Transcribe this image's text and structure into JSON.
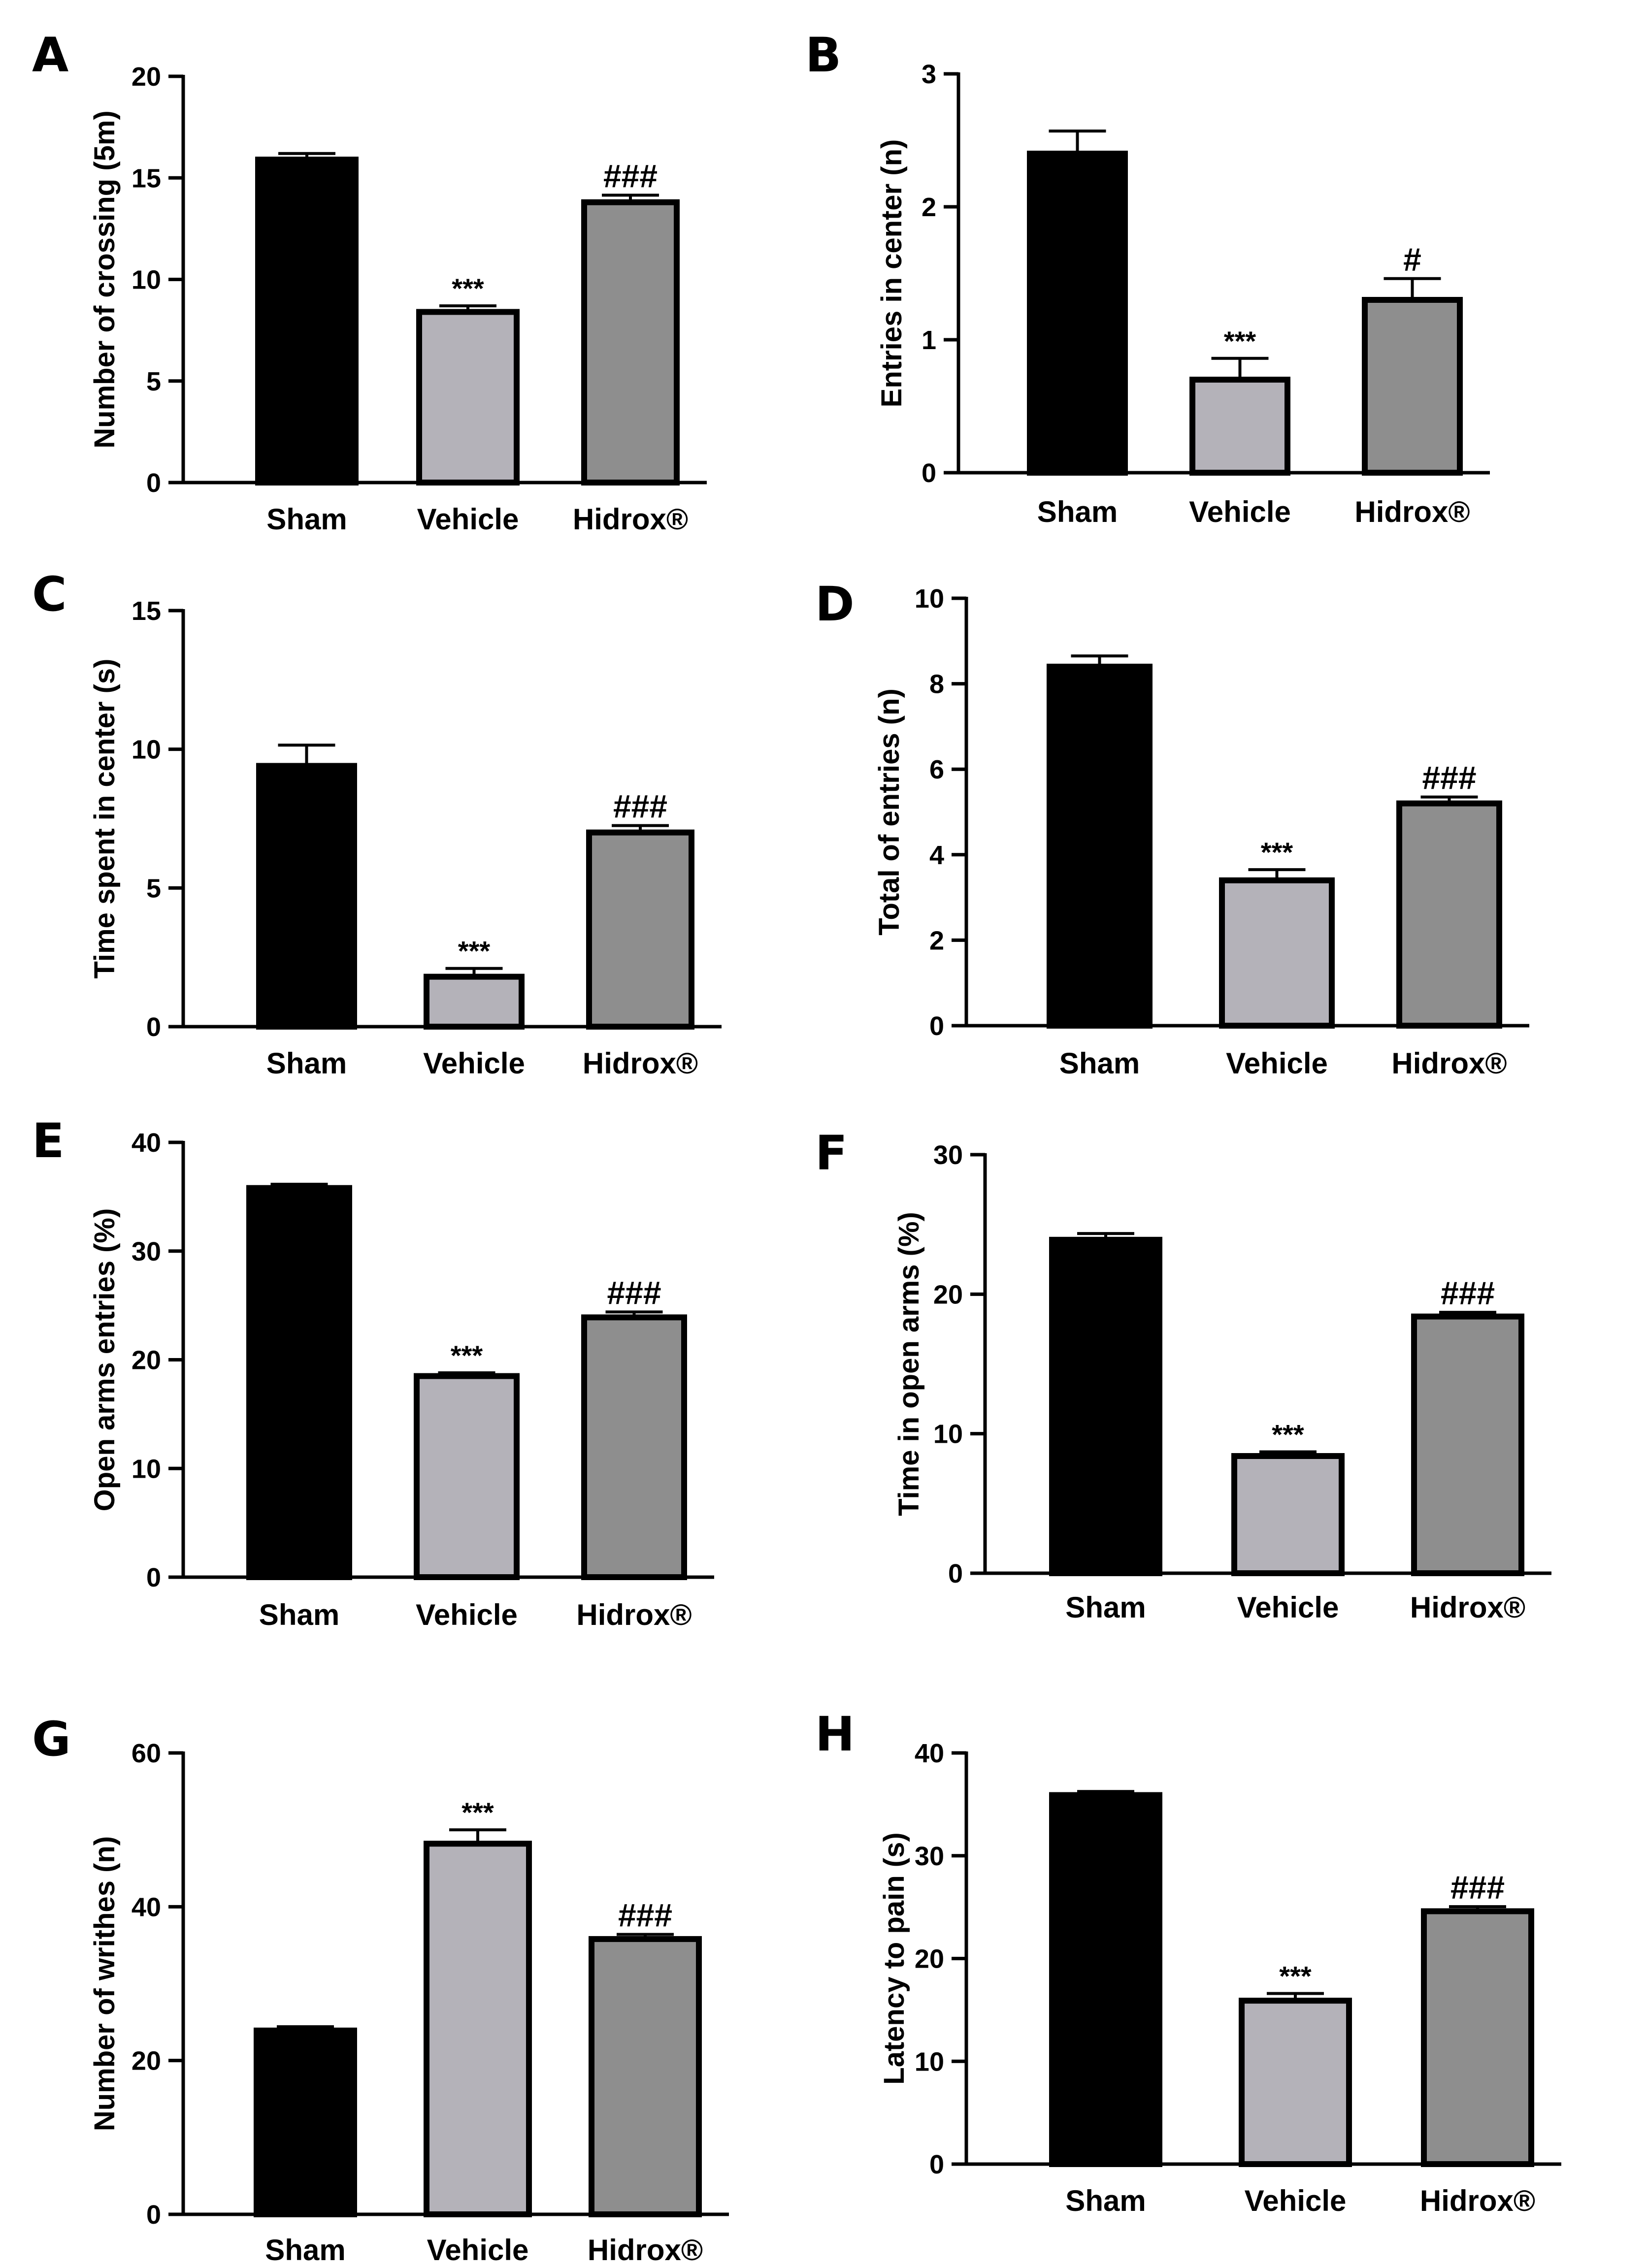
{
  "colors": {
    "sham": "#000000",
    "vehicle": "#b4b2b9",
    "hidrox": "#8e8e8e",
    "stroke": "#000000"
  },
  "chart_data": [
    {
      "type": "bar",
      "panel": "A",
      "title": "",
      "xlabel": "",
      "ylabel": "Number of crossing (5m)",
      "categories": [
        "Sham",
        "Vehicle",
        "Hidrox®"
      ],
      "values": [
        15.9,
        8.4,
        13.8
      ],
      "errors": [
        0.3,
        0.3,
        0.35
      ],
      "annotations": [
        "",
        "***",
        "###"
      ],
      "ylim": [
        0,
        20
      ],
      "yticks": [
        0,
        5,
        10,
        15,
        20
      ],
      "ytick_labels": [
        "0",
        "5",
        "10",
        "15",
        "20"
      ]
    },
    {
      "type": "bar",
      "panel": "B",
      "title": "",
      "xlabel": "",
      "ylabel": "Entries in center (n)",
      "categories": [
        "Sham",
        "Vehicle",
        "Hidrox®"
      ],
      "values": [
        2.4,
        0.7,
        1.3
      ],
      "errors": [
        0.17,
        0.16,
        0.16
      ],
      "annotations": [
        "",
        "***",
        "#"
      ],
      "ylim": [
        0,
        3
      ],
      "yticks": [
        0,
        1,
        2,
        3
      ],
      "ytick_labels": [
        "0",
        "1",
        "2",
        "3"
      ]
    },
    {
      "type": "bar",
      "panel": "C",
      "title": "",
      "xlabel": "",
      "ylabel": "Time spent in center (s)",
      "categories": [
        "Sham",
        "Vehicle",
        "Hidrox®"
      ],
      "values": [
        9.4,
        1.8,
        7.0
      ],
      "errors": [
        0.75,
        0.3,
        0.25
      ],
      "annotations": [
        "",
        "***",
        "###"
      ],
      "ylim": [
        0,
        15
      ],
      "yticks": [
        0,
        5,
        10,
        15
      ],
      "ytick_labels": [
        "0",
        "5",
        "10",
        "15"
      ]
    },
    {
      "type": "bar",
      "panel": "D",
      "title": "",
      "xlabel": "",
      "ylabel": "Total of entries (n)",
      "categories": [
        "Sham",
        "Vehicle",
        "Hidrox®"
      ],
      "values": [
        8.4,
        3.4,
        5.2
      ],
      "errors": [
        0.25,
        0.25,
        0.15
      ],
      "annotations": [
        "",
        "***",
        "###"
      ],
      "ylim": [
        0,
        10
      ],
      "yticks": [
        0,
        2,
        4,
        6,
        8,
        10
      ],
      "ytick_labels": [
        "0",
        "2",
        "4",
        "6",
        "8",
        "10"
      ]
    },
    {
      "type": "bar",
      "panel": "E",
      "title": "",
      "xlabel": "",
      "ylabel": "Open arms entries (%)",
      "categories": [
        "Sham",
        "Vehicle",
        "Hidrox®"
      ],
      "values": [
        35.8,
        18.5,
        23.9
      ],
      "errors": [
        0.35,
        0.3,
        0.5
      ],
      "annotations": [
        "",
        "***",
        "###"
      ],
      "ylim": [
        0,
        40
      ],
      "yticks": [
        0,
        10,
        20,
        30,
        40
      ],
      "ytick_labels": [
        "0",
        "10",
        "20",
        "30",
        "40"
      ]
    },
    {
      "type": "bar",
      "panel": "F",
      "title": "",
      "xlabel": "",
      "ylabel": "Time in open arms (%)",
      "categories": [
        "Sham",
        "Vehicle",
        "Hidrox®"
      ],
      "values": [
        23.9,
        8.4,
        18.4
      ],
      "errors": [
        0.45,
        0.3,
        0.3
      ],
      "annotations": [
        "",
        "***",
        "###"
      ],
      "ylim": [
        0,
        30
      ],
      "yticks": [
        0,
        10,
        20,
        30
      ],
      "ytick_labels": [
        "0",
        "10",
        "20",
        "30"
      ]
    },
    {
      "type": "bar",
      "panel": "G",
      "title": "",
      "xlabel": "",
      "ylabel": "Number of writhes (n)",
      "categories": [
        "Sham",
        "Vehicle",
        "Hidrox®"
      ],
      "values": [
        23.9,
        48.2,
        35.8
      ],
      "errors": [
        0.5,
        1.8,
        0.6
      ],
      "annotations": [
        "",
        "***",
        "###"
      ],
      "ylim": [
        0,
        60
      ],
      "yticks": [
        0,
        20,
        40,
        60
      ],
      "ytick_labels": [
        "0",
        "20",
        "40",
        "60"
      ]
    },
    {
      "type": "bar",
      "panel": "H",
      "title": "",
      "xlabel": "",
      "ylabel": "Latency to pain (s)",
      "categories": [
        "Sham",
        "Vehicle",
        "Hidrox®"
      ],
      "values": [
        35.9,
        15.9,
        24.6
      ],
      "errors": [
        0.35,
        0.7,
        0.45
      ],
      "annotations": [
        "",
        "***",
        "###"
      ],
      "ylim": [
        0,
        40
      ],
      "yticks": [
        0,
        10,
        20,
        30,
        40
      ],
      "ytick_labels": [
        "0",
        "10",
        "20",
        "30",
        "40"
      ]
    }
  ]
}
